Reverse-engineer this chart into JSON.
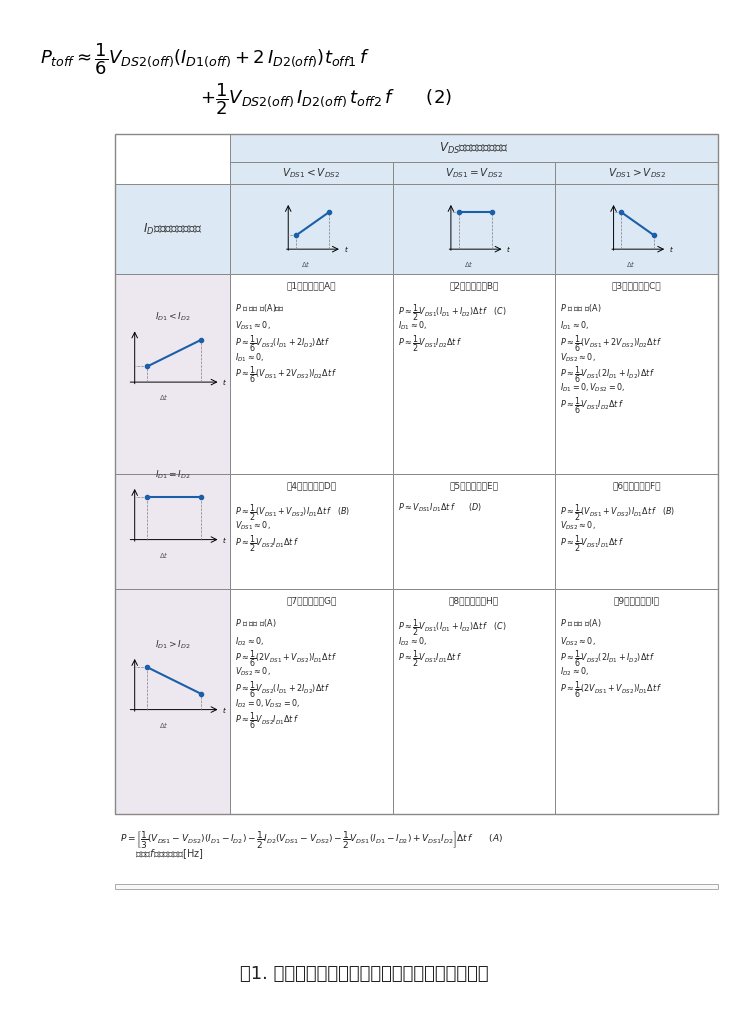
{
  "title_formula_line1": "$P_{toff} \\approx \\dfrac{1}{6} V_{DS2(off)} \\left( I_{D1(off)} + 2\\, I_{D2(off)} \\right) t_{off1}\\, f$",
  "title_formula_line2": "$+ \\dfrac{1}{2} V_{DS2(off)}\\, I_{D2(off)}\\, t_{off2}\\, f \\qquad (2)$",
  "caption": "表1. 各种波形形状的线性近似法开关损耗计算公式",
  "bg_color": "#ffffff",
  "table_header_bg": "#dce9f5",
  "table_row_bg": "#ede8f0",
  "table_white_bg": "#ffffff",
  "vds_header": "$V_{DS}$随时间的变化情况",
  "ids_header": "$I_D$随时间的变化情况",
  "col_headers": [
    "$V_{DS1} < V_{DS2}$",
    "$V_{DS1} = V_{DS2}$",
    "$V_{DS1} > V_{DS2}$"
  ],
  "row_headers": [
    "$I_{D1} < I_{D2}$",
    "$I_{D1} = I_{D2}$",
    "$I_{D1} > I_{D2}$"
  ],
  "case_labels": [
    [
      "例1（参见附录A）",
      "例2（参见附录B）",
      "例3（参见附录C）"
    ],
    [
      "例4（参见附录D）",
      "例5（参见附录E）",
      "例6（参见附录F）"
    ],
    [
      "例7（参见附录G）",
      "例8（参见附录H）",
      "例9（参见附录I）"
    ]
  ],
  "cell_formulas": [
    [
      "$P$ ＝ 下記 式(A)参照\n\n$V_{DS1} \\approx 0,$\n$P \\approx \\dfrac{1}{6} V_{DS2} \\left( I_{D1} + 2 I_{D2} \\right) \\Delta t\\, f$\n\n$I_{D1} \\approx 0,$\n$P \\approx \\dfrac{1}{6} \\left( V_{DS1} + 2 V_{DS2} \\right) I_{D2} \\Delta t\\, f$",
      "$P \\approx \\dfrac{1}{2} V_{DS1} \\left( I_{D1} + I_{D2} \\right) \\Delta t\\, f \\quad (C)$\n\n$I_{D1} \\approx 0,$\n$P \\approx \\dfrac{1}{2} V_{DS1} I_{D2} \\Delta t\\, f$",
      "$P$ ＝ 下記 式(A)\n\n$I_{D1} \\approx 0,$\n$P \\approx \\dfrac{1}{6} \\left( V_{DS1} + 2 V_{DS2} \\right) I_{D2} \\Delta t\\, f$\n\n$V_{DS2} \\approx 0,$\n$P \\approx \\dfrac{1}{6} V_{DS1} \\left( 2 I_{D1} + I_{D2} \\right) \\Delta t\\, f$\n\n$I_{D1} = 0, V_{DS2} = 0,$\n$P \\approx \\dfrac{1}{6} V_{DS1} I_{D2} \\Delta t\\, f$"
    ],
    [
      "$P \\approx \\dfrac{1}{2} \\left( V_{DS1} + V_{DS2} \\right) I_{D1} \\Delta t\\, f \\quad (B)$\n\n$V_{DS1} \\approx 0,$\n$P \\approx \\dfrac{1}{2} V_{DS2} I_{D1} \\Delta t\\, f$",
      "$P \\approx V_{DS1} I_{D1} \\Delta t\\, f \\qquad (D)$",
      "$P \\approx \\dfrac{1}{2} \\left( V_{DS1} + V_{DS2} \\right) I_{D1} \\Delta t\\, f \\quad (B)$\n\n$V_{DS2} \\approx 0,$\n$P \\approx \\dfrac{1}{2} V_{DS1} I_{D1} \\Delta t\\, f$"
    ],
    [
      "$P$ ＝ 下記 式(A)\n\n$I_{D2} \\approx 0,$\n$P \\approx \\dfrac{1}{6} \\left( 2 V_{DS1} + V_{DS2} \\right) I_{D1} \\Delta t\\, f$\n\n$V_{DS2} \\approx 0,$\n$P \\approx \\dfrac{1}{6} V_{DS2} \\left( I_{D1} + 2 I_{D2} \\right) \\Delta t\\, f$\n\n$I_{D2} = 0, V_{DS2} = 0,$\n$P \\approx \\dfrac{1}{6} V_{DS2} I_{D1} \\Delta t\\, f$",
      "$P \\approx \\dfrac{1}{2} V_{DS1} \\left( I_{D1} + I_{D2} \\right) \\Delta t\\, f \\quad (C)$\n\n$I_{D2} \\approx 0,$\n$P \\approx \\dfrac{1}{2} V_{DS1} I_{D1} \\Delta t\\, f$",
      "$P$ ＝ 下記 式(A)\n\n$V_{DS2} \\approx 0,$\n$P \\approx \\dfrac{1}{6} V_{DS2} \\left( 2 I_{D1} + I_{D2} \\right) \\Delta t\\, f$\n\n$I_{D2} \\approx 0,$\n$P \\approx \\dfrac{1}{6} \\left( 2 V_{DS1} + V_{DS2} \\right) I_{D1} \\Delta t\\, f$"
    ]
  ],
  "bottom_formula": "$P = \\left[ \\dfrac{1}{3} \\left( V_{DS1} - V_{DS2} \\right)\\left( I_{D1} - I_{D2} \\right) - \\dfrac{1}{2} I_{D2} \\left( V_{DS1} - V_{DS2} \\right) - \\dfrac{1}{2} V_{DS1} \\left( I_{D1} - I_{D2} \\right) + V_{DS1} I_{D2} \\right] \\Delta t\\, f \\qquad (A)$",
  "bottom_note": "但，　$f$：开关频率　[Hz]"
}
